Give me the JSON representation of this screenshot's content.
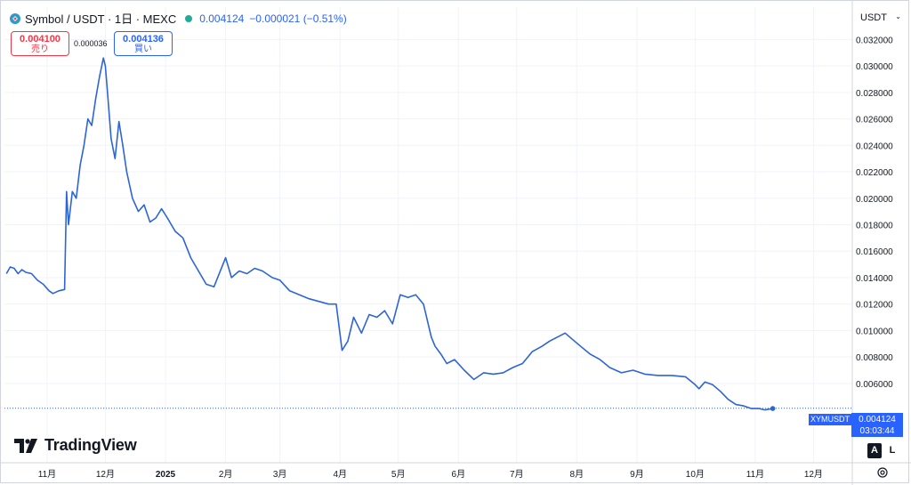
{
  "header": {
    "title": "Symbol / USDT · 1日 · MEXC",
    "last_price": "0.004124",
    "change": "−0.000021 (−0.51%)"
  },
  "order_buttons": {
    "sell_price": "0.004100",
    "sell_label": "売り",
    "spread": "0.000036",
    "buy_price": "0.004136",
    "buy_label": "買い"
  },
  "currency_button": "USDT",
  "logo_text": "TradingView",
  "last_label": {
    "symbol": "XYMUSDT",
    "price": "0.004124",
    "countdown": "03:03:44"
  },
  "buttons": {
    "auto": "A",
    "log": "L"
  },
  "icons": {
    "symbol": "symbol-logo-icon",
    "chevron": "chevron-down-icon",
    "settings": "gear-icon",
    "logo": "tradingview-logo-icon"
  },
  "colors": {
    "line": "#2d64d6",
    "accent": "#2962ff",
    "sell": "#f23645",
    "status_dot": "#22ab94"
  },
  "chart_data": {
    "type": "line",
    "series": [
      {
        "name": "XYMUSDT",
        "x": [
          "2024-10-11",
          "2024-10-13",
          "2024-10-15",
          "2024-10-17",
          "2024-10-19",
          "2024-10-21",
          "2024-10-24",
          "2024-10-27",
          "2024-10-30",
          "2024-11-02",
          "2024-11-04",
          "2024-11-07",
          "2024-11-10",
          "2024-11-11",
          "2024-11-12",
          "2024-11-14",
          "2024-11-16",
          "2024-11-18",
          "2024-11-20",
          "2024-11-22",
          "2024-11-24",
          "2024-11-26",
          "2024-11-28",
          "2024-11-30",
          "2024-12-01",
          "2024-12-02",
          "2024-12-04",
          "2024-12-06",
          "2024-12-08",
          "2024-12-10",
          "2024-12-12",
          "2024-12-15",
          "2024-12-18",
          "2024-12-21",
          "2024-12-24",
          "2024-12-27",
          "2024-12-30",
          "2025-01-02",
          "2025-01-06",
          "2025-01-10",
          "2025-01-14",
          "2025-01-18",
          "2025-01-22",
          "2025-01-26",
          "2025-02-01",
          "2025-02-04",
          "2025-02-08",
          "2025-02-12",
          "2025-02-16",
          "2025-02-20",
          "2025-02-25",
          "2025-03-01",
          "2025-03-06",
          "2025-03-11",
          "2025-03-16",
          "2025-03-21",
          "2025-03-26",
          "2025-03-30",
          "2025-04-02",
          "2025-04-05",
          "2025-04-08",
          "2025-04-12",
          "2025-04-16",
          "2025-04-20",
          "2025-04-24",
          "2025-04-28",
          "2025-05-02",
          "2025-05-06",
          "2025-05-10",
          "2025-05-14",
          "2025-05-18",
          "2025-05-20",
          "2025-05-23",
          "2025-05-26",
          "2025-05-30",
          "2025-06-04",
          "2025-06-09",
          "2025-06-14",
          "2025-06-19",
          "2025-06-24",
          "2025-06-29",
          "2025-07-04",
          "2025-07-09",
          "2025-07-14",
          "2025-07-18",
          "2025-07-22",
          "2025-07-26",
          "2025-07-30",
          "2025-08-03",
          "2025-08-08",
          "2025-08-13",
          "2025-08-18",
          "2025-08-24",
          "2025-08-30",
          "2025-09-05",
          "2025-09-12",
          "2025-09-19",
          "2025-09-26",
          "2025-10-01",
          "2025-10-03",
          "2025-10-06",
          "2025-10-10",
          "2025-10-14",
          "2025-10-18",
          "2025-10-22",
          "2025-10-26",
          "2025-10-30",
          "2025-11-03",
          "2025-11-06",
          "2025-11-10"
        ],
        "y": [
          0.0143,
          0.0148,
          0.0147,
          0.0143,
          0.0146,
          0.0144,
          0.0143,
          0.0138,
          0.0135,
          0.013,
          0.0128,
          0.013,
          0.0131,
          0.0205,
          0.018,
          0.0205,
          0.02,
          0.0225,
          0.024,
          0.026,
          0.0255,
          0.0275,
          0.0292,
          0.0306,
          0.03,
          0.0282,
          0.0245,
          0.023,
          0.0258,
          0.024,
          0.022,
          0.02,
          0.019,
          0.0195,
          0.0182,
          0.0185,
          0.0192,
          0.0185,
          0.0175,
          0.017,
          0.0155,
          0.0145,
          0.0135,
          0.0133,
          0.0155,
          0.014,
          0.0145,
          0.0143,
          0.0147,
          0.0145,
          0.014,
          0.0138,
          0.013,
          0.0127,
          0.0124,
          0.0122,
          0.012,
          0.012,
          0.0085,
          0.0092,
          0.011,
          0.0098,
          0.0112,
          0.011,
          0.0115,
          0.0105,
          0.0127,
          0.0125,
          0.0127,
          0.012,
          0.0095,
          0.0088,
          0.0082,
          0.0075,
          0.0078,
          0.007,
          0.0063,
          0.0068,
          0.0067,
          0.0068,
          0.0072,
          0.0075,
          0.0084,
          0.0088,
          0.0092,
          0.0095,
          0.0098,
          0.0093,
          0.0088,
          0.0082,
          0.0078,
          0.0072,
          0.0068,
          0.007,
          0.0067,
          0.0066,
          0.0066,
          0.0065,
          0.0059,
          0.0056,
          0.0061,
          0.0059,
          0.0054,
          0.0048,
          0.0044,
          0.0043,
          0.0041,
          0.0041,
          0.004,
          0.0041
        ]
      }
    ],
    "yticks": [
      "0.032000",
      "0.030000",
      "0.028000",
      "0.026000",
      "0.024000",
      "0.022000",
      "0.020000",
      "0.018000",
      "0.016000",
      "0.014000",
      "0.012000",
      "0.010000",
      "0.008000",
      "0.006000"
    ],
    "ytick_values": [
      0.032,
      0.03,
      0.028,
      0.026,
      0.024,
      0.022,
      0.02,
      0.018,
      0.016,
      0.014,
      0.012,
      0.01,
      0.008,
      0.006
    ],
    "xticks": [
      "11月",
      "12月",
      "2025",
      "2月",
      "3月",
      "4月",
      "5月",
      "6月",
      "7月",
      "8月",
      "9月",
      "10月",
      "11月",
      "12月"
    ],
    "xtick_dates": [
      "2024-11-01",
      "2024-12-01",
      "2025-01-01",
      "2025-02-01",
      "2025-03-01",
      "2025-04-01",
      "2025-05-01",
      "2025-06-01",
      "2025-07-01",
      "2025-08-01",
      "2025-09-01",
      "2025-10-01",
      "2025-11-01",
      "2025-12-01"
    ],
    "xlim": [
      "2024-10-10",
      "2025-12-21"
    ],
    "ylim": [
      0.0,
      0.0327
    ],
    "last_value": 0.004124,
    "grid": true
  }
}
